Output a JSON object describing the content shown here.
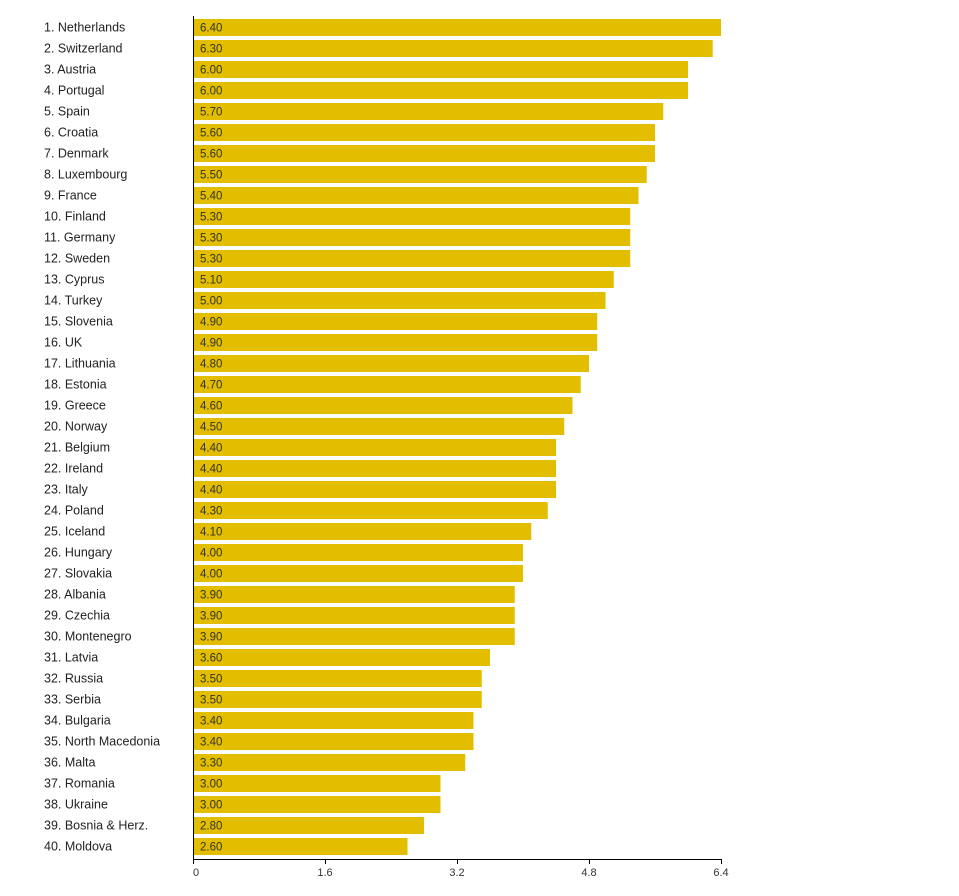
{
  "chart_data": {
    "type": "bar",
    "orientation": "horizontal",
    "bar_color": "#e2bd00",
    "categories": [
      "1. Netherlands",
      "2. Switzerland",
      "3. Austria",
      "4. Portugal",
      "5. Spain",
      "6. Croatia",
      "7. Denmark",
      "8. Luxembourg",
      "9. France",
      "10. Finland",
      "11. Germany",
      "12. Sweden",
      "13. Cyprus",
      "14. Turkey",
      "15. Slovenia",
      "16. UK",
      "17. Lithuania",
      "18. Estonia",
      "19. Greece",
      "20. Norway",
      "21. Belgium",
      "22. Ireland",
      "23. Italy",
      "24. Poland",
      "25. Iceland",
      "26. Hungary",
      "27. Slovakia",
      "28. Albania",
      "29. Czechia",
      "30. Montenegro",
      "31. Latvia",
      "32. Russia",
      "33. Serbia",
      "34. Bulgaria",
      "35. North Macedonia",
      "36. Malta",
      "37. Romania",
      "38. Ukraine",
      "39. Bosnia & Herz.",
      "40. Moldova"
    ],
    "values": [
      6.4,
      6.3,
      6.0,
      6.0,
      5.7,
      5.6,
      5.6,
      5.5,
      5.4,
      5.3,
      5.3,
      5.3,
      5.1,
      5.0,
      4.9,
      4.9,
      4.8,
      4.7,
      4.6,
      4.5,
      4.4,
      4.4,
      4.4,
      4.3,
      4.1,
      4.0,
      4.0,
      3.9,
      3.9,
      3.9,
      3.6,
      3.5,
      3.5,
      3.4,
      3.4,
      3.3,
      3.0,
      3.0,
      2.8,
      2.6
    ],
    "value_labels": [
      "6.40",
      "6.30",
      "6.00",
      "6.00",
      "5.70",
      "5.60",
      "5.60",
      "5.50",
      "5.40",
      "5.30",
      "5.30",
      "5.30",
      "5.10",
      "5.00",
      "4.90",
      "4.90",
      "4.80",
      "4.70",
      "4.60",
      "4.50",
      "4.40",
      "4.40",
      "4.40",
      "4.30",
      "4.10",
      "4.00",
      "4.00",
      "3.90",
      "3.90",
      "3.90",
      "3.60",
      "3.50",
      "3.50",
      "3.40",
      "3.40",
      "3.30",
      "3.00",
      "3.00",
      "2.80",
      "2.60"
    ],
    "xlim": [
      0,
      6.4
    ],
    "x_ticks": [
      0,
      1.6,
      3.2,
      4.8,
      6.4
    ],
    "x_tick_labels": [
      "0",
      "1.6",
      "3.2",
      "4.8",
      "6.4"
    ],
    "title": "",
    "xlabel": "",
    "ylabel": "",
    "grid": false,
    "legend": "none"
  }
}
